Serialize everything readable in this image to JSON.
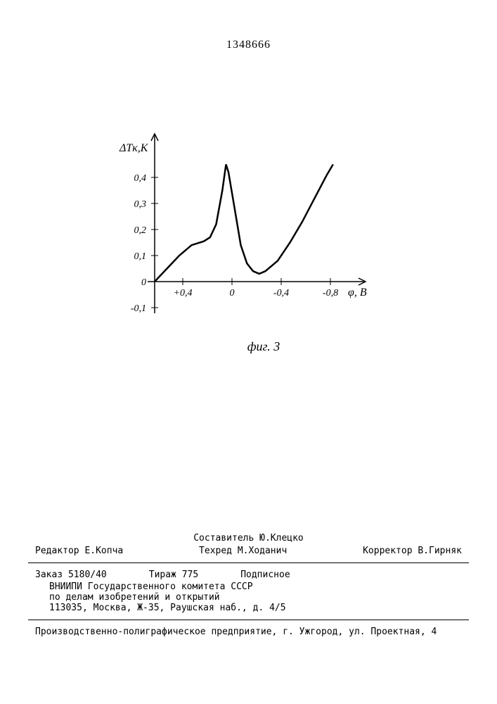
{
  "document_number": "1348666",
  "chart": {
    "type": "line",
    "y_axis_label": "ΔTк,K",
    "x_axis_label": "φ, B",
    "y_ticks": [
      "0",
      "0,1",
      "0,2",
      "0,3",
      "0,4"
    ],
    "y_tick_neg": "-0,1",
    "x_ticks": [
      "+0,4",
      "0",
      "-0,4",
      "-0,8"
    ],
    "ylim": [
      -0.12,
      0.5
    ],
    "xlim": [
      0.6,
      -1.0
    ],
    "background_color": "#ffffff",
    "line_color": "#000000",
    "line_width": 2.5,
    "axis_color": "#000000",
    "curve_points": [
      [
        0.6,
        0.0
      ],
      [
        0.5,
        0.05
      ],
      [
        0.4,
        0.1
      ],
      [
        0.3,
        0.14
      ],
      [
        0.2,
        0.155
      ],
      [
        0.15,
        0.17
      ],
      [
        0.1,
        0.22
      ],
      [
        0.05,
        0.35
      ],
      [
        0.02,
        0.45
      ],
      [
        0.0,
        0.42
      ],
      [
        -0.05,
        0.28
      ],
      [
        -0.1,
        0.14
      ],
      [
        -0.15,
        0.07
      ],
      [
        -0.2,
        0.04
      ],
      [
        -0.25,
        0.03
      ],
      [
        -0.3,
        0.04
      ],
      [
        -0.4,
        0.08
      ],
      [
        -0.5,
        0.15
      ],
      [
        -0.6,
        0.23
      ],
      [
        -0.7,
        0.32
      ],
      [
        -0.8,
        0.41
      ],
      [
        -0.85,
        0.45
      ]
    ]
  },
  "figure_caption": "фиг. 3",
  "footer": {
    "compiler": "Составитель Ю.Клецко",
    "editor": "Редактор Е.Копча",
    "techred": "Техред М.Ходанич",
    "corrector": "Корректор В.Гирняк",
    "order_number": "Заказ 5180/40",
    "circulation": "Тираж 775",
    "subscription": "Подписное",
    "org_line1": "ВНИИПИ Государственного комитета СССР",
    "org_line2": "по делам изобретений и открытий",
    "org_line3": "113035, Москва, Ж-35, Раушская наб., д. 4/5",
    "print_info": "Производственно-полиграфическое предприятие, г. Ужгород, ул. Проектная, 4"
  }
}
